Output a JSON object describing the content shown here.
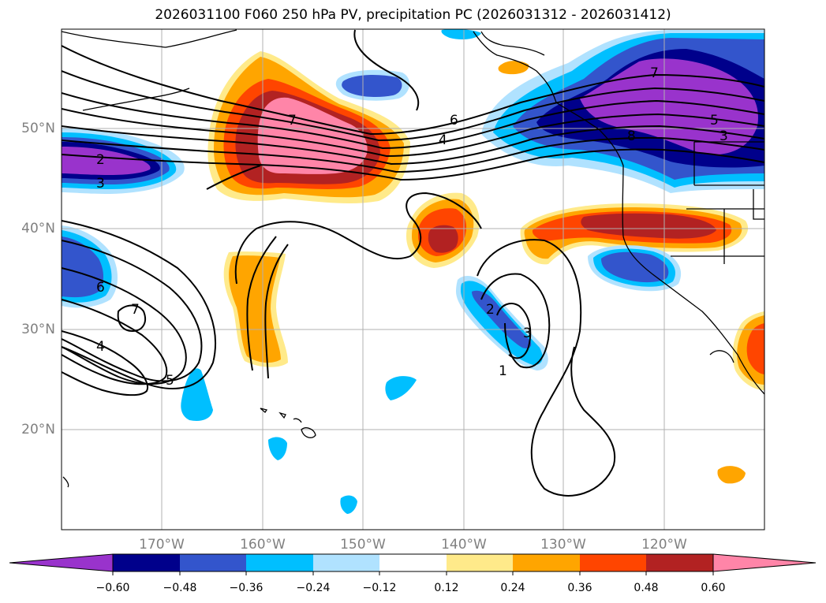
{
  "title": "2026031100 F060 250 hPa PV, precipitation PC (2026031312 - 2026031412)",
  "lat_labels": [
    "50°N",
    "40°N",
    "30°N",
    "20°N"
  ],
  "lon_labels": [
    "170°W",
    "160°W",
    "150°W",
    "140°W",
    "130°W",
    "120°W"
  ],
  "colorbar": {
    "tick_labels": [
      "−0.60",
      "−0.48",
      "−0.36",
      "−0.24",
      "−0.12",
      "0.12",
      "0.24",
      "0.36",
      "0.48",
      "0.60"
    ],
    "colors": [
      "#9933cc",
      "#00008b",
      "#3355cc",
      "#00bfff",
      "#b0e2ff",
      "#ffffff",
      "#ffea8a",
      "#ffa500",
      "#ff4500",
      "#b22222",
      "#ff85a8"
    ]
  },
  "contour_labels": [
    "7",
    "6",
    "4",
    "2",
    "3",
    "6",
    "7",
    "4",
    "5",
    "2",
    "3",
    "1",
    "7",
    "5",
    "3",
    "8"
  ],
  "colors": {
    "land": "#000000",
    "grid": "#b0b0b0",
    "contour": "#000000"
  }
}
